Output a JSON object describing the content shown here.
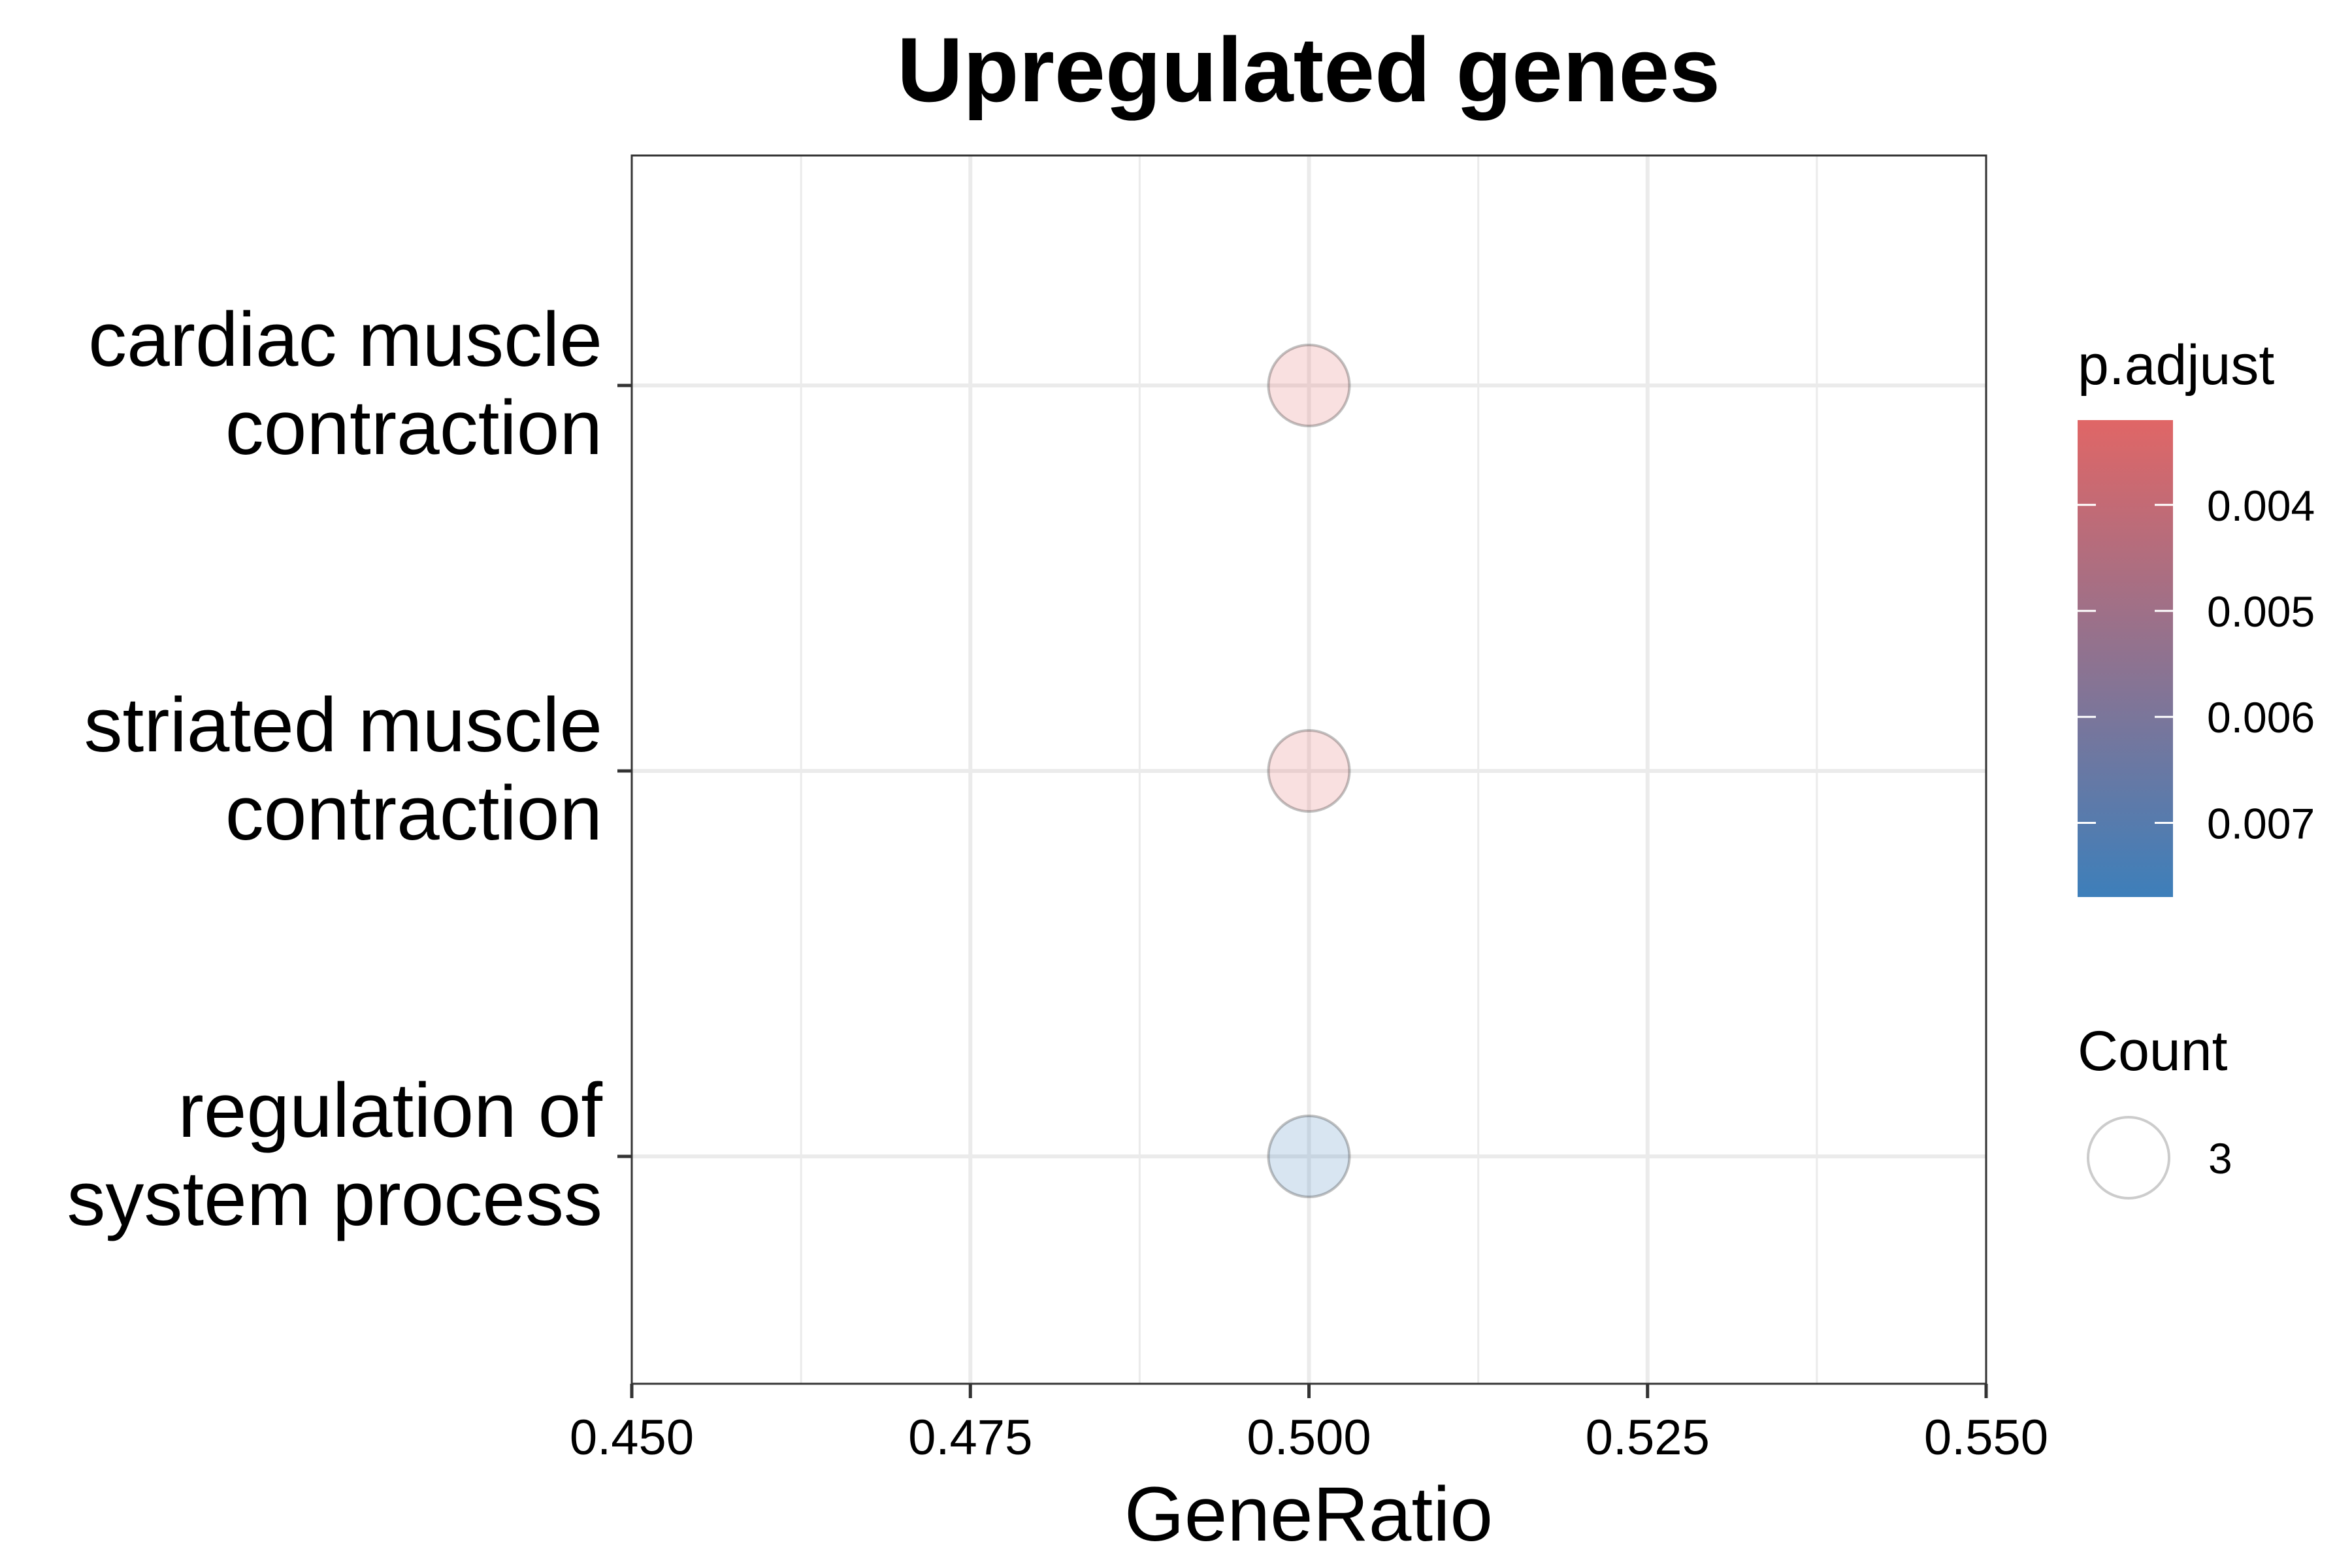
{
  "chart_data": {
    "type": "scatter",
    "title": "Upregulated genes",
    "xlabel": "GeneRatio",
    "ylabel": "",
    "xlim": [
      0.45,
      0.55
    ],
    "x_ticks": [
      "0.450",
      "0.475",
      "0.500",
      "0.525",
      "0.550"
    ],
    "x_tick_values": [
      0.45,
      0.475,
      0.5,
      0.525,
      0.55
    ],
    "grid": true,
    "categories": [
      [
        "cardiac muscle",
        "contraction"
      ],
      [
        "striated muscle",
        "contraction"
      ],
      [
        "regulation of",
        "system process"
      ]
    ],
    "points": [
      {
        "term": "cardiac muscle contraction",
        "gene_ratio": 0.5,
        "count": 3,
        "p_adjust": 0.0032
      },
      {
        "term": "striated muscle contraction",
        "gene_ratio": 0.5,
        "count": 3,
        "p_adjust": 0.0032
      },
      {
        "term": "regulation of system process",
        "gene_ratio": 0.5,
        "count": 3,
        "p_adjust": 0.0077
      }
    ],
    "color_legend": {
      "title": "p.adjust",
      "range": [
        0.0032,
        0.0077
      ],
      "ticks": [
        "0.004",
        "0.005",
        "0.006",
        "0.007"
      ],
      "tick_values": [
        0.004,
        0.005,
        0.006,
        0.007
      ],
      "low_color": "#E06666",
      "high_color": "#3D7FBA",
      "placement": "right"
    },
    "size_legend": {
      "title": "Count",
      "entries": [
        {
          "label": "3",
          "value": 3
        }
      ],
      "placement": "right"
    },
    "point_alpha": 0.2
  }
}
